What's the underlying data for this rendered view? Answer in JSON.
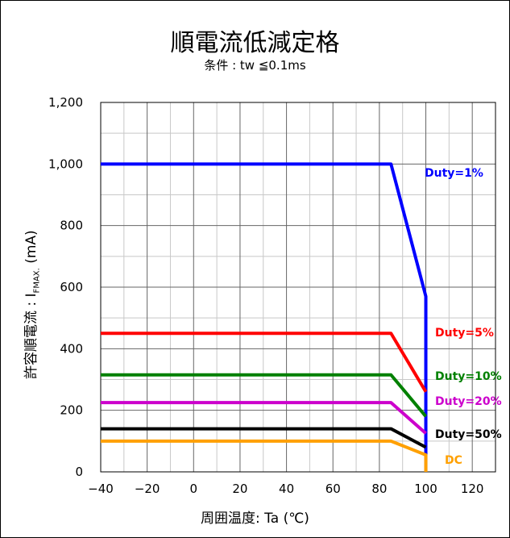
{
  "chart_data": {
    "type": "line",
    "title": "順電流低減定格",
    "subtitle": "条件 : tw ≦0.1ms",
    "xlabel": "周囲温度: Ta (℃)",
    "ylabel_main": "許容順電流 : I",
    "ylabel_sub": "FMAX.",
    "ylabel_unit": " (mA)",
    "xlim": [
      -40,
      130
    ],
    "ylim": [
      0,
      1200
    ],
    "x_ticks": [
      "−40",
      "−20",
      "0",
      "20",
      "40",
      "60",
      "80",
      "100",
      "120"
    ],
    "y_ticks": [
      "0",
      "200",
      "400",
      "600",
      "800",
      "1,000",
      "1,200"
    ],
    "grid": true,
    "series": [
      {
        "name": "Duty=1%",
        "color": "#0000ff",
        "x": [
          -40,
          85,
          100,
          100
        ],
        "y": [
          1000,
          1000,
          570,
          0
        ]
      },
      {
        "name": "Duty=5%",
        "color": "#ff0000",
        "x": [
          -40,
          85,
          100
        ],
        "y": [
          450,
          450,
          260
        ]
      },
      {
        "name": "Duty=10%",
        "color": "#008000",
        "x": [
          -40,
          85,
          100
        ],
        "y": [
          315,
          315,
          180
        ]
      },
      {
        "name": "Duty=20%",
        "color": "#cc00cc",
        "x": [
          -40,
          85,
          100
        ],
        "y": [
          225,
          225,
          125
        ]
      },
      {
        "name": "Duty=50%",
        "color": "#000000",
        "x": [
          -40,
          85,
          100
        ],
        "y": [
          140,
          140,
          80
        ]
      },
      {
        "name": "DC",
        "color": "#ffa000",
        "x": [
          -40,
          85,
          100,
          100
        ],
        "y": [
          100,
          100,
          55,
          0
        ]
      }
    ]
  }
}
